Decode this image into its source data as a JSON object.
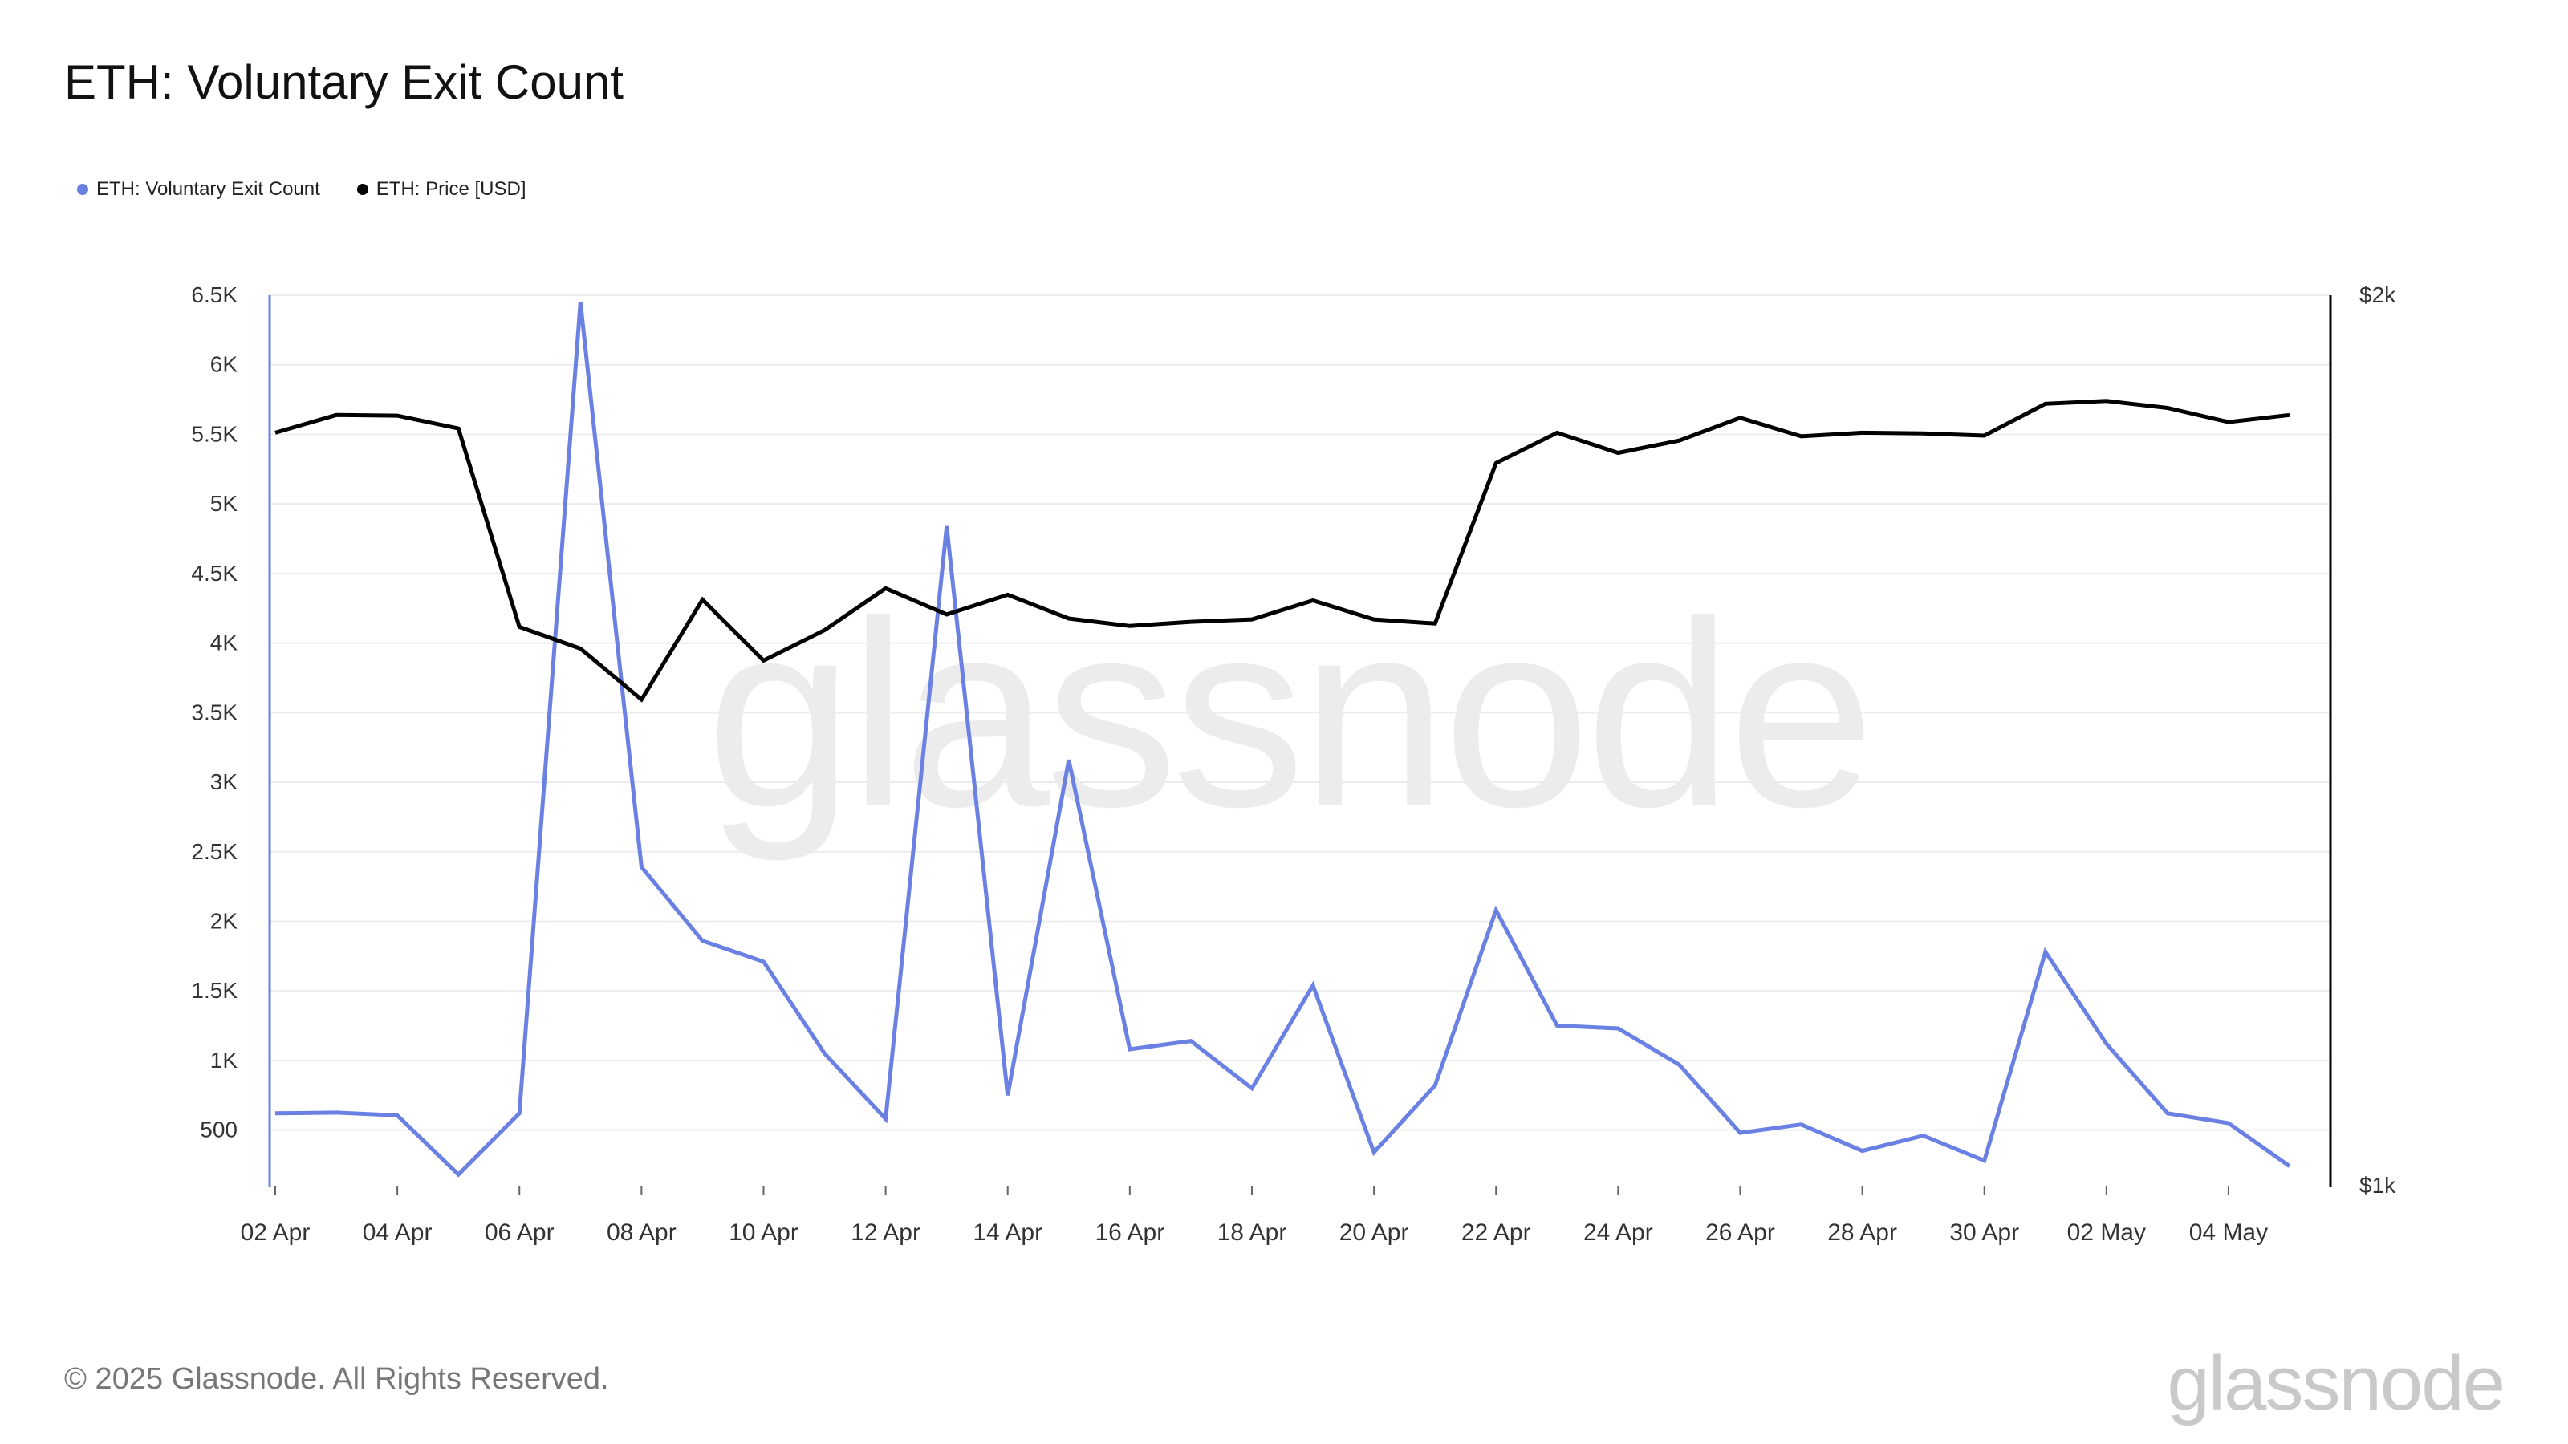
{
  "header": {
    "title": "ETH: Voluntary Exit Count"
  },
  "legend": {
    "items": [
      {
        "label": "ETH: Voluntary Exit Count",
        "color": "#6a81e3"
      },
      {
        "label": "ETH: Price [USD]",
        "color": "#000000"
      }
    ]
  },
  "watermark": {
    "text": "glassnode"
  },
  "footer": {
    "copyright": "© 2025 Glassnode. All Rights Reserved.",
    "logo_text": "glassnode"
  },
  "chart_data": {
    "type": "line",
    "title": "ETH: Voluntary Exit Count",
    "x": [
      "02 Apr",
      "03 Apr",
      "04 Apr",
      "05 Apr",
      "06 Apr",
      "07 Apr",
      "08 Apr",
      "09 Apr",
      "10 Apr",
      "11 Apr",
      "12 Apr",
      "13 Apr",
      "14 Apr",
      "15 Apr",
      "16 Apr",
      "17 Apr",
      "18 Apr",
      "19 Apr",
      "20 Apr",
      "21 Apr",
      "22 Apr",
      "23 Apr",
      "24 Apr",
      "25 Apr",
      "26 Apr",
      "27 Apr",
      "28 Apr",
      "29 Apr",
      "30 Apr",
      "01 May",
      "02 May",
      "03 May",
      "04 May",
      "05 May"
    ],
    "x_tick_labels": [
      "02 Apr",
      "04 Apr",
      "06 Apr",
      "08 Apr",
      "10 Apr",
      "12 Apr",
      "14 Apr",
      "16 Apr",
      "18 Apr",
      "20 Apr",
      "22 Apr",
      "24 Apr",
      "26 Apr",
      "28 Apr",
      "30 Apr",
      "02 May",
      "04 May"
    ],
    "y_left": {
      "ticks": [
        "500",
        "1K",
        "1.5K",
        "2K",
        "2.5K",
        "3K",
        "3.5K",
        "4K",
        "4.5K",
        "5K",
        "5.5K",
        "6K",
        "6.5K"
      ],
      "tick_values": [
        500,
        1000,
        1500,
        2000,
        2500,
        3000,
        3500,
        4000,
        4500,
        5000,
        5500,
        6000,
        6500
      ],
      "range": [
        100,
        6500
      ]
    },
    "y_right": {
      "ticks": [
        "$1k",
        "$2k"
      ],
      "tick_values": [
        1000,
        2000
      ],
      "range": [
        1000,
        2000
      ],
      "scale": "log"
    },
    "grid": true,
    "legend_position": "top-left",
    "series": [
      {
        "name": "ETH: Voluntary Exit Count",
        "axis": "left",
        "color": "#6a81e3",
        "values": [
          620,
          625,
          605,
          180,
          620,
          6450,
          2390,
          1860,
          1710,
          1050,
          580,
          4840,
          750,
          3160,
          1080,
          1140,
          800,
          1540,
          340,
          820,
          2080,
          1250,
          1230,
          970,
          480,
          540,
          350,
          460,
          280,
          1780,
          1120,
          620,
          550,
          240
        ]
      },
      {
        "name": "ETH: Price [USD]",
        "axis": "right",
        "color": "#000000",
        "values": [
          1797,
          1822,
          1821,
          1803,
          1545,
          1519,
          1460,
          1578,
          1505,
          1541,
          1592,
          1560,
          1584,
          1555,
          1546,
          1551,
          1554,
          1577,
          1554,
          1549,
          1755,
          1797,
          1769,
          1786,
          1818,
          1792,
          1797,
          1796,
          1793,
          1838,
          1842,
          1832,
          1812,
          1822
        ]
      }
    ]
  }
}
